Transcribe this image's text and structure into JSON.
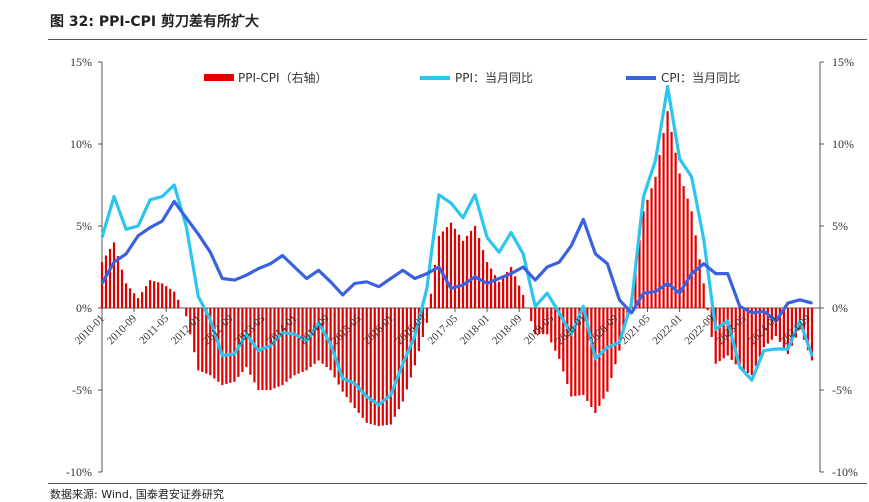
{
  "figure": {
    "title": "图 32:  PPI-CPI 剪刀差有所扩大",
    "source": "数据来源:  Wind,  国泰君安证券研究"
  },
  "chart_data": {
    "type": "bar+line",
    "start_month": "2010-01",
    "x_tick_labels": [
      "2010-01",
      "2010-09",
      "2011-05",
      "2012-01",
      "2012-09",
      "2013-05",
      "2014-01",
      "2014-09",
      "2015-05",
      "2016-01",
      "2016-09",
      "2017-05",
      "2018-01",
      "2018-09",
      "2019-05",
      "2020-01",
      "2020-09",
      "2021-05",
      "2022-01",
      "2022-09",
      "2023-05",
      "2024-01",
      "2024-09"
    ],
    "y_left": {
      "ticks": [
        "15%",
        "10%",
        "5%",
        "0%",
        "-5%",
        "-10%"
      ],
      "range": [
        -10,
        15
      ]
    },
    "y_right": {
      "ticks": [
        "15%",
        "10%",
        "5%",
        "0%",
        "-5%",
        "-10%"
      ],
      "range": [
        -10,
        15
      ]
    },
    "legend": [
      "PPI-CPI（右轴）",
      "PPI：当月同比",
      "CPI：当月同比"
    ],
    "colors": {
      "bar": "#e00000",
      "ppi": "#2cc5f0",
      "cpi": "#3a62e0"
    },
    "series": [
      {
        "name": "PPI：当月同比",
        "x": [
          "2010-01",
          "2010-04",
          "2010-07",
          "2010-10",
          "2011-01",
          "2011-04",
          "2011-07",
          "2011-10",
          "2012-01",
          "2012-04",
          "2012-07",
          "2012-10",
          "2013-01",
          "2013-04",
          "2013-07",
          "2013-10",
          "2014-01",
          "2014-04",
          "2014-07",
          "2014-10",
          "2015-01",
          "2015-04",
          "2015-07",
          "2015-10",
          "2016-01",
          "2016-04",
          "2016-07",
          "2016-10",
          "2017-01",
          "2017-04",
          "2017-07",
          "2017-10",
          "2018-01",
          "2018-04",
          "2018-07",
          "2018-10",
          "2019-01",
          "2019-04",
          "2019-07",
          "2019-10",
          "2020-01",
          "2020-04",
          "2020-07",
          "2020-10",
          "2021-01",
          "2021-04",
          "2021-07",
          "2021-10",
          "2022-01",
          "2022-04",
          "2022-07",
          "2022-10",
          "2023-01",
          "2023-04",
          "2023-07",
          "2023-10",
          "2024-01",
          "2024-04",
          "2024-07",
          "2024-10"
        ],
        "values": [
          4.3,
          6.8,
          4.8,
          5.0,
          6.6,
          6.8,
          7.5,
          5.0,
          0.7,
          -0.7,
          -2.9,
          -2.8,
          -1.6,
          -2.6,
          -2.3,
          -1.5,
          -1.6,
          -2.0,
          -0.9,
          -2.2,
          -4.3,
          -4.6,
          -5.4,
          -5.9,
          -5.3,
          -3.4,
          -1.7,
          1.2,
          6.9,
          6.4,
          5.5,
          6.9,
          4.3,
          3.4,
          4.6,
          3.3,
          0.1,
          0.9,
          -0.3,
          -1.6,
          0.1,
          -3.1,
          -2.4,
          -2.1,
          0.3,
          6.8,
          9.0,
          13.5,
          9.1,
          8.0,
          4.2,
          -1.3,
          -0.8,
          -3.6,
          -4.4,
          -2.6,
          -2.5,
          -2.5,
          -0.8,
          -2.9
        ]
      },
      {
        "name": "CPI：当月同比",
        "x": [
          "2010-01",
          "2010-04",
          "2010-07",
          "2010-10",
          "2011-01",
          "2011-04",
          "2011-07",
          "2011-10",
          "2012-01",
          "2012-04",
          "2012-07",
          "2012-10",
          "2013-01",
          "2013-04",
          "2013-07",
          "2013-10",
          "2014-01",
          "2014-04",
          "2014-07",
          "2014-10",
          "2015-01",
          "2015-04",
          "2015-07",
          "2015-10",
          "2016-01",
          "2016-04",
          "2016-07",
          "2016-10",
          "2017-01",
          "2017-04",
          "2017-07",
          "2017-10",
          "2018-01",
          "2018-04",
          "2018-07",
          "2018-10",
          "2019-01",
          "2019-04",
          "2019-07",
          "2019-10",
          "2020-01",
          "2020-04",
          "2020-07",
          "2020-10",
          "2021-01",
          "2021-04",
          "2021-07",
          "2021-10",
          "2022-01",
          "2022-04",
          "2022-07",
          "2022-10",
          "2023-01",
          "2023-04",
          "2023-07",
          "2023-10",
          "2024-01",
          "2024-04",
          "2024-07",
          "2024-10"
        ],
        "values": [
          1.5,
          2.8,
          3.3,
          4.4,
          4.9,
          5.3,
          6.5,
          5.5,
          4.5,
          3.4,
          1.8,
          1.7,
          2.0,
          2.4,
          2.7,
          3.2,
          2.5,
          1.8,
          2.3,
          1.6,
          0.8,
          1.5,
          1.6,
          1.3,
          1.8,
          2.3,
          1.8,
          2.1,
          2.5,
          1.2,
          1.4,
          1.9,
          1.5,
          1.8,
          2.1,
          2.5,
          1.7,
          2.5,
          2.8,
          3.8,
          5.4,
          3.3,
          2.7,
          0.5,
          -0.3,
          0.9,
          1.0,
          1.5,
          0.9,
          2.1,
          2.7,
          2.1,
          2.1,
          0.1,
          -0.3,
          -0.2,
          -0.8,
          0.3,
          0.5,
          0.3
        ]
      },
      {
        "name": "PPI-CPI（右轴）",
        "x": [
          "2010-01",
          "2010-04",
          "2010-07",
          "2010-10",
          "2011-01",
          "2011-04",
          "2011-07",
          "2011-10",
          "2012-01",
          "2012-04",
          "2012-07",
          "2012-10",
          "2013-01",
          "2013-04",
          "2013-07",
          "2013-10",
          "2014-01",
          "2014-04",
          "2014-07",
          "2014-10",
          "2015-01",
          "2015-04",
          "2015-07",
          "2015-10",
          "2016-01",
          "2016-04",
          "2016-07",
          "2016-10",
          "2017-01",
          "2017-04",
          "2017-07",
          "2017-10",
          "2018-01",
          "2018-04",
          "2018-07",
          "2018-10",
          "2019-01",
          "2019-04",
          "2019-07",
          "2019-10",
          "2020-01",
          "2020-04",
          "2020-07",
          "2020-10",
          "2021-01",
          "2021-04",
          "2021-07",
          "2021-10",
          "2022-01",
          "2022-04",
          "2022-07",
          "2022-10",
          "2023-01",
          "2023-04",
          "2023-07",
          "2023-10",
          "2024-01",
          "2024-04",
          "2024-07",
          "2024-10"
        ],
        "values": [
          2.8,
          4.0,
          1.5,
          0.6,
          1.7,
          1.5,
          1.0,
          -0.5,
          -3.8,
          -4.1,
          -4.7,
          -4.5,
          -3.6,
          -5.0,
          -5.0,
          -4.7,
          -4.1,
          -3.8,
          -3.2,
          -3.8,
          -5.1,
          -6.1,
          -7.0,
          -7.2,
          -7.1,
          -5.7,
          -3.5,
          -0.9,
          4.4,
          5.2,
          4.1,
          5.0,
          2.8,
          1.6,
          2.5,
          0.8,
          -1.6,
          -1.6,
          -3.1,
          -5.4,
          -5.3,
          -6.4,
          -5.1,
          -2.6,
          0.6,
          5.9,
          8.0,
          12.0,
          8.2,
          5.9,
          1.5,
          -3.4,
          -2.9,
          -3.7,
          -4.1,
          -2.4,
          -1.7,
          -2.8,
          -1.3,
          -3.2
        ]
      }
    ]
  }
}
